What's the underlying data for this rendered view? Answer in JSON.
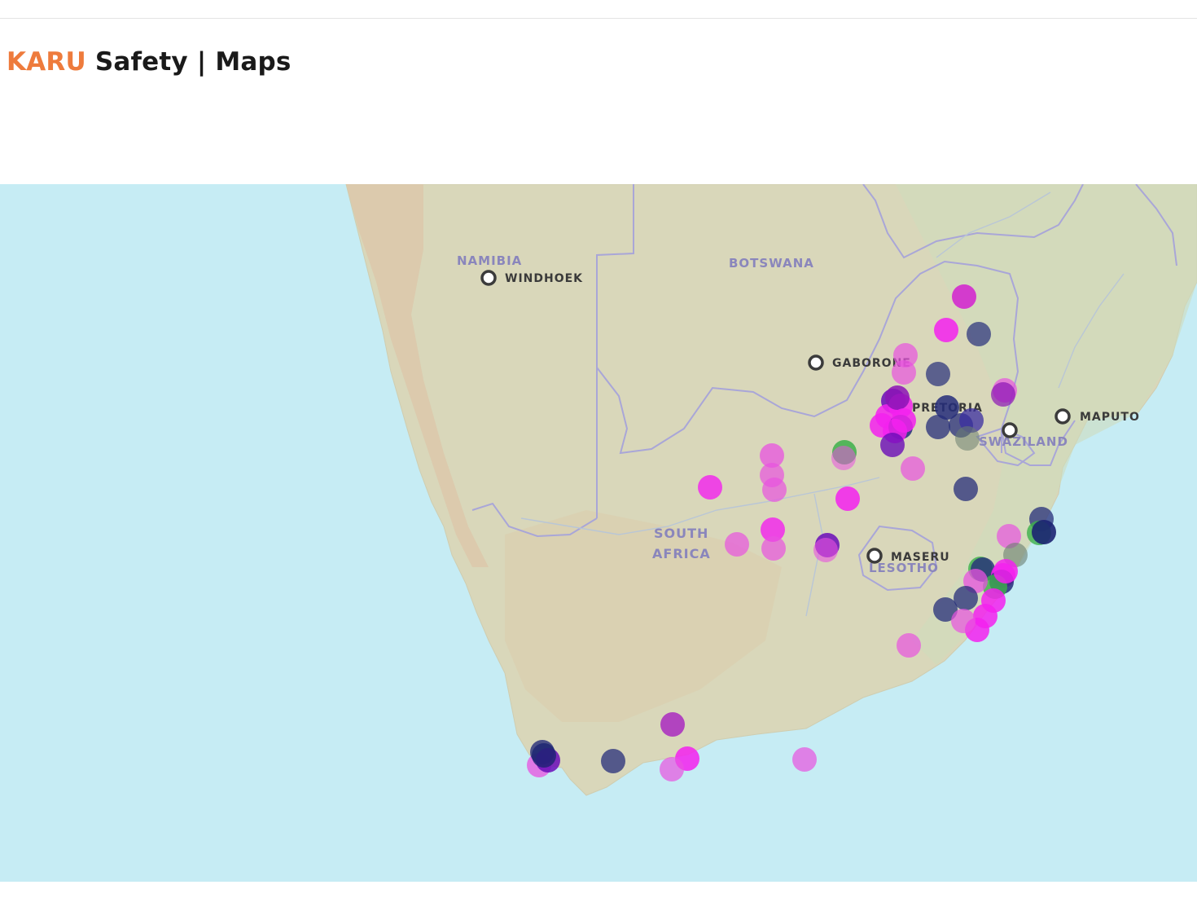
{
  "header": {
    "brand": "KARU",
    "title_rest": " Safety | Maps"
  },
  "map": {
    "colors": {
      "ocean": "#c6ecf4",
      "land": "#d8d6b8",
      "border": "#a9a6d8",
      "magenta": "#ee1fe5",
      "purple": "#6a0cb8",
      "navy": "#1c2472",
      "green": "#3cb04a"
    },
    "country_labels": [
      {
        "id": "namibia",
        "text": "NAMIBIA"
      },
      {
        "id": "botswana",
        "text": "BOTSWANA"
      },
      {
        "id": "south-africa-line1",
        "text": "SOUTH"
      },
      {
        "id": "south-africa-line2",
        "text": "AFRICA"
      },
      {
        "id": "lesotho",
        "text": "LESOTHO"
      },
      {
        "id": "swaziland",
        "text": "SWAZILAND"
      }
    ],
    "cities": [
      {
        "id": "windhoek",
        "text": "WINDHOEK"
      },
      {
        "id": "gaborone",
        "text": "GABORONE"
      },
      {
        "id": "pretoria",
        "text": "PRETORIA"
      },
      {
        "id": "maputo",
        "text": "MAPUTO"
      },
      {
        "id": "maseru",
        "text": "MASERU"
      },
      {
        "id": "mbabane",
        "text": ""
      }
    ]
  }
}
